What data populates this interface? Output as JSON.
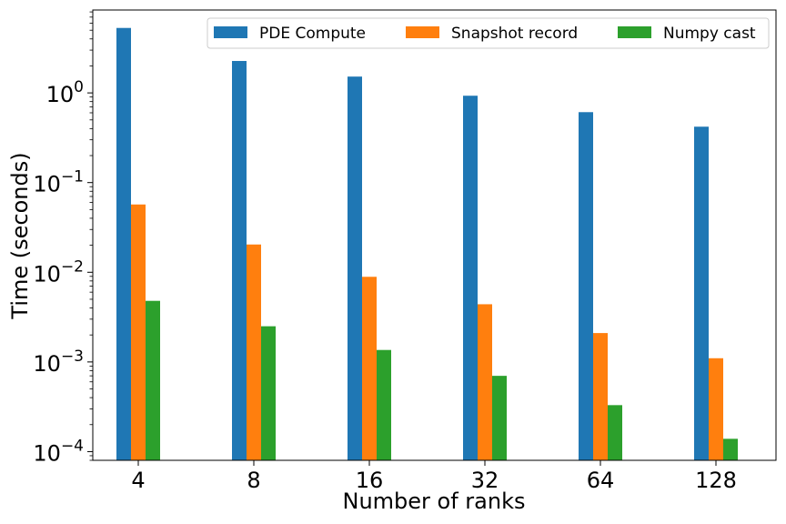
{
  "chart_data": {
    "type": "bar",
    "title": "",
    "xlabel": "Number of ranks",
    "ylabel": "Time (seconds)",
    "yscale": "log",
    "ylim": [
      8e-05,
      8.4
    ],
    "grid": false,
    "legend_position": "top-right",
    "categories": [
      "4",
      "8",
      "16",
      "32",
      "64",
      "128"
    ],
    "yticks": [
      {
        "value": 1,
        "base": "10",
        "exp": "0"
      },
      {
        "value": 0.1,
        "base": "10",
        "exp": "−1"
      },
      {
        "value": 0.01,
        "base": "10",
        "exp": "−2"
      },
      {
        "value": 0.001,
        "base": "10",
        "exp": "−3"
      },
      {
        "value": 0.0001,
        "base": "10",
        "exp": "−4"
      }
    ],
    "series": [
      {
        "name": "PDE Compute",
        "color": "#1f77b4",
        "values": [
          5.3,
          2.27,
          1.52,
          0.93,
          0.61,
          0.42
        ]
      },
      {
        "name": "Snapshot record",
        "color": "#ff7f0e",
        "values": [
          0.057,
          0.0204,
          0.0089,
          0.0044,
          0.0021,
          0.0011
        ]
      },
      {
        "name": "Numpy cast",
        "color": "#2ca02c",
        "values": [
          0.0048,
          0.0025,
          0.00136,
          0.0007,
          0.00033,
          0.000139
        ]
      }
    ]
  }
}
